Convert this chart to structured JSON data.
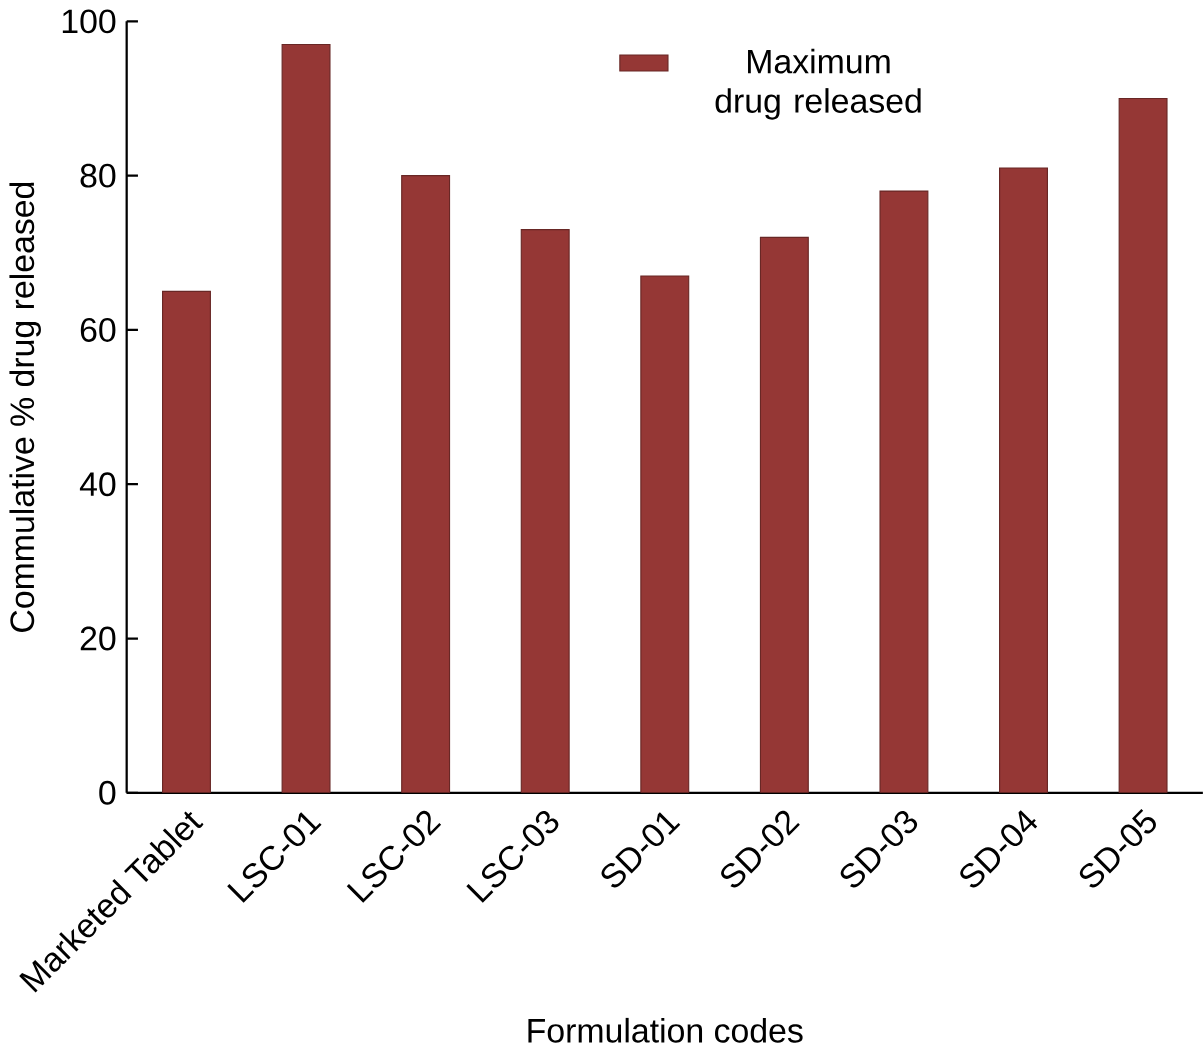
{
  "chart_data": {
    "type": "bar",
    "xlabel": "Formulation codes",
    "ylabel": "Commulative  % drug released",
    "categories": [
      "Marketed Tablet",
      "LSC-01",
      "LSC-02",
      "LSC-03",
      "SD-01",
      "SD-02",
      "SD-03",
      "SD-04",
      "SD-05"
    ],
    "series": [
      {
        "name": "Maximum drug released",
        "color": "#953735",
        "values": [
          65,
          97,
          80,
          73,
          67,
          72,
          78,
          81,
          90
        ]
      }
    ],
    "ylim": [
      0,
      100
    ],
    "yticks": [
      0,
      20,
      40,
      60,
      80,
      100
    ],
    "grid": false,
    "legend": "top"
  }
}
